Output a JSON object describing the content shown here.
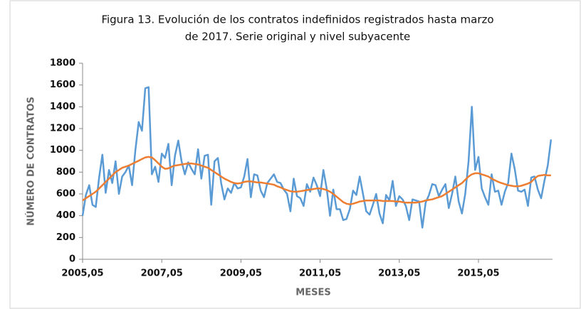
{
  "chart_data": {
    "type": "line",
    "title": [
      "Figura 13. Evolución de los contratos indefinidos registrados hasta marzo",
      "de 2017. Serie original y nivel subyacente"
    ],
    "xlabel": "MESES",
    "ylabel": "NÚMERO DE CONTRATOS",
    "categories": [
      "2005,05",
      null,
      null,
      null,
      null,
      null,
      null,
      null,
      null,
      null,
      null,
      null,
      null,
      null,
      null,
      null,
      null,
      null,
      null,
      null,
      null,
      null,
      null,
      null,
      "2007,05",
      null,
      null,
      null,
      null,
      null,
      null,
      null,
      null,
      null,
      null,
      null,
      null,
      null,
      null,
      null,
      null,
      null,
      null,
      null,
      null,
      null,
      null,
      null,
      "2009,05",
      null,
      null,
      null,
      null,
      null,
      null,
      null,
      null,
      null,
      null,
      null,
      null,
      null,
      null,
      null,
      null,
      null,
      null,
      null,
      null,
      null,
      null,
      null,
      "2011,05",
      null,
      null,
      null,
      null,
      null,
      null,
      null,
      null,
      null,
      null,
      null,
      null,
      null,
      null,
      null,
      null,
      null,
      null,
      null,
      null,
      null,
      null,
      null,
      "2013,05",
      null,
      null,
      null,
      null,
      null,
      null,
      null,
      null,
      null,
      null,
      null,
      null,
      null,
      null,
      null,
      null,
      null,
      null,
      null,
      null,
      null,
      null,
      null,
      "2015,05",
      null,
      null,
      null,
      null,
      null,
      null,
      null,
      null,
      null,
      null,
      null,
      null,
      null,
      null,
      null,
      null,
      null,
      null,
      null,
      null,
      null,
      null
    ],
    "series": [
      {
        "color": "#5b9bd5",
        "values": [
          400,
          590,
          680,
          500,
          480,
          750,
          960,
          610,
          820,
          700,
          900,
          600,
          760,
          800,
          860,
          680,
          1000,
          1260,
          1180,
          1570,
          1580,
          780,
          850,
          710,
          970,
          930,
          1060,
          680,
          950,
          1090,
          900,
          780,
          890,
          830,
          780,
          1010,
          740,
          950,
          960,
          500,
          900,
          930,
          700,
          550,
          650,
          610,
          700,
          650,
          660,
          760,
          920,
          570,
          780,
          770,
          630,
          570,
          700,
          740,
          780,
          710,
          700,
          640,
          600,
          440,
          740,
          580,
          560,
          490,
          690,
          620,
          750,
          680,
          580,
          820,
          650,
          400,
          640,
          460,
          460,
          360,
          370,
          460,
          630,
          590,
          760,
          600,
          440,
          410,
          500,
          600,
          420,
          330,
          590,
          540,
          720,
          490,
          580,
          550,
          490,
          360,
          550,
          540,
          530,
          290,
          520,
          590,
          690,
          680,
          580,
          640,
          690,
          470,
          600,
          760,
          530,
          420,
          600,
          900,
          1400,
          820,
          940,
          650,
          570,
          500,
          780,
          620,
          630,
          500,
          620,
          700,
          970,
          830,
          630,
          620,
          640,
          490,
          750,
          760,
          640,
          560,
          720,
          860,
          1100
        ]
      },
      {
        "color": "#ed7d31",
        "values": [
          540,
          560,
          580,
          600,
          620,
          650,
          680,
          710,
          740,
          770,
          800,
          820,
          840,
          850,
          860,
          875,
          890,
          905,
          920,
          935,
          940,
          935,
          910,
          880,
          850,
          830,
          835,
          850,
          860,
          865,
          870,
          875,
          880,
          880,
          875,
          870,
          860,
          850,
          840,
          820,
          800,
          780,
          760,
          740,
          725,
          710,
          700,
          695,
          700,
          710,
          715,
          715,
          710,
          705,
          705,
          700,
          695,
          690,
          685,
          670,
          660,
          645,
          635,
          625,
          620,
          620,
          625,
          630,
          635,
          640,
          645,
          650,
          650,
          645,
          635,
          620,
          600,
          575,
          550,
          525,
          510,
          505,
          510,
          520,
          530,
          535,
          540,
          540,
          540,
          540,
          540,
          535,
          535,
          535,
          535,
          530,
          530,
          525,
          520,
          520,
          520,
          520,
          525,
          530,
          540,
          545,
          550,
          560,
          570,
          580,
          600,
          620,
          640,
          660,
          680,
          700,
          730,
          760,
          780,
          790,
          790,
          780,
          770,
          760,
          740,
          725,
          710,
          700,
          690,
          680,
          675,
          670,
          670,
          675,
          685,
          695,
          710,
          740,
          765,
          770,
          775,
          770,
          770
        ]
      }
    ],
    "ylim": [
      0,
      1800
    ],
    "yticks": [
      0,
      200,
      400,
      600,
      800,
      1000,
      1200,
      1400,
      1600,
      1800
    ]
  }
}
